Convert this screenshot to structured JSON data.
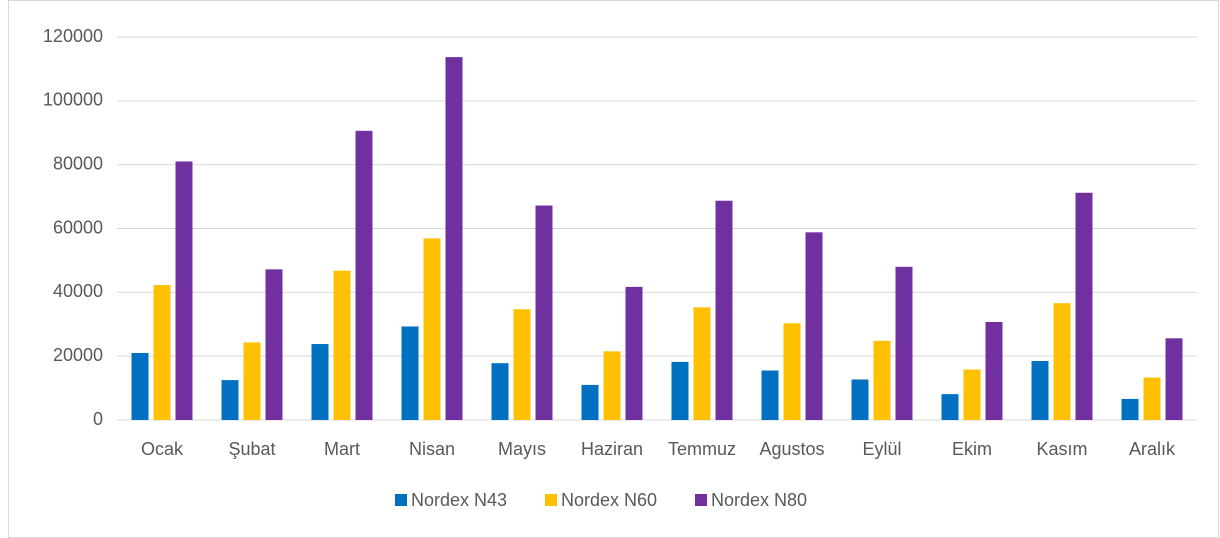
{
  "chart_data": {
    "type": "bar",
    "categories": [
      "Ocak",
      "Şubat",
      "Mart",
      "Nisan",
      "Mayıs",
      "Haziran",
      "Temmuz",
      "Agustos",
      "Eylül",
      "Ekim",
      "Kasım",
      "Aralık"
    ],
    "series": [
      {
        "name": "Nordex N43",
        "color": "#0070c0",
        "values": [
          21000,
          12500,
          23800,
          29300,
          17800,
          11000,
          18200,
          15500,
          12700,
          8100,
          18500,
          6600
        ]
      },
      {
        "name": "Nordex N60",
        "color": "#ffc000",
        "values": [
          42300,
          24300,
          46800,
          56900,
          34700,
          21500,
          35300,
          30300,
          24800,
          15800,
          36600,
          13300
        ]
      },
      {
        "name": "Nordex N80",
        "color": "#7030a0",
        "values": [
          81000,
          47200,
          90600,
          113700,
          67200,
          41700,
          68700,
          58800,
          48000,
          30700,
          71200,
          25600
        ]
      }
    ],
    "ylim": [
      0,
      120000
    ],
    "yticks": [
      0,
      20000,
      40000,
      60000,
      80000,
      100000,
      120000
    ],
    "grid": true,
    "legend": "bottom"
  }
}
